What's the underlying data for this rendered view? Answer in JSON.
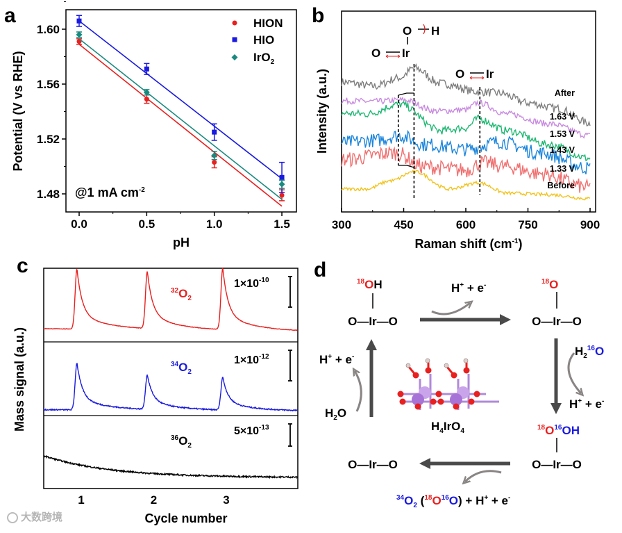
{
  "chart_data": [
    {
      "panel": "a",
      "type": "scatter",
      "xlabel": "pH",
      "ylabel": "Potential (V vs RHE)",
      "xlim": [
        -0.1,
        1.6
      ],
      "ylim": [
        1.467,
        1.614
      ],
      "xticks": [
        "0.0",
        "0.5",
        "1.0",
        "1.5"
      ],
      "yticks": [
        "1.48",
        "1.52",
        "1.56",
        "1.60"
      ],
      "xtick_values": [
        0,
        0.5,
        1.0,
        1.5
      ],
      "ytick_values": [
        1.48,
        1.52,
        1.56,
        1.6
      ],
      "annotation": {
        "main": "@1 mA cm",
        "sup": "-2"
      },
      "legend_position": "top-right",
      "x": [
        0,
        0.5,
        1.0,
        1.5
      ],
      "series": [
        {
          "name": "HION",
          "color": "#e8201f",
          "marker": "circle",
          "values": [
            1.591,
            1.549,
            1.503,
            1.479
          ],
          "errors": [
            0.002,
            0.003,
            0.004,
            0.004
          ],
          "fit": [
            1.589,
            1.471
          ]
        },
        {
          "name": "HIO",
          "color": "#1a1ae0",
          "marker": "square",
          "values": [
            1.606,
            1.571,
            1.525,
            1.492
          ],
          "errors": [
            0.004,
            0.004,
            0.006,
            0.011
          ],
          "fit": [
            1.606,
            1.491
          ]
        },
        {
          "name": "IrO",
          "sub": "2",
          "color": "#1a8a80",
          "marker": "diamond",
          "values": [
            1.596,
            1.554,
            1.508,
            1.487
          ],
          "errors": [
            0.002,
            0.002,
            0.003,
            0.003
          ],
          "fit": [
            1.593,
            1.476
          ]
        }
      ]
    },
    {
      "panel": "b",
      "type": "line",
      "xlabel": "Raman shift (cm",
      "xlabel_sup": "-1",
      "xlabel_end": ")",
      "ylabel": "Intensity (a.u.)",
      "xlim": [
        300,
        900
      ],
      "xticks": [
        "300",
        "450",
        "600",
        "750",
        "900"
      ],
      "xtick_values": [
        300,
        450,
        600,
        750,
        900
      ],
      "annotations": {
        "oh_o": "O",
        "oh_h": "H",
        "irO_o": "O",
        "irO_ir": "Ir",
        "irO2_o": "O",
        "irO2_ir": "Ir"
      },
      "reference_lines": [
        475,
        437,
        634
      ],
      "series": [
        {
          "name": "After",
          "color": "#7f7f7f",
          "noise": 0.3,
          "points": [
            [
              300,
              9.1
            ],
            [
              380,
              8.8
            ],
            [
              440,
              9.4
            ],
            [
              475,
              10.1
            ],
            [
              540,
              9.0
            ],
            [
              630,
              8.4
            ],
            [
              680,
              8.3
            ],
            [
              750,
              7.6
            ],
            [
              820,
              7.2
            ],
            [
              900,
              6.15
            ]
          ]
        },
        {
          "name": "1.63 V",
          "color": "#c88ae0",
          "noise": 0.22,
          "points": [
            [
              300,
              7.75
            ],
            [
              380,
              7.7
            ],
            [
              450,
              7.8
            ],
            [
              530,
              7.0
            ],
            [
              600,
              7.1
            ],
            [
              630,
              7.6
            ],
            [
              700,
              6.8
            ],
            [
              800,
              6.1
            ],
            [
              900,
              5.25
            ]
          ]
        },
        {
          "name": "1.53 V",
          "color": "#1fb873",
          "noise": 0.28,
          "points": [
            [
              300,
              6.85
            ],
            [
              360,
              6.8
            ],
            [
              440,
              7.5
            ],
            [
              540,
              5.6
            ],
            [
              600,
              5.8
            ],
            [
              630,
              6.45
            ],
            [
              700,
              5.6
            ],
            [
              800,
              4.6
            ],
            [
              900,
              3.6
            ]
          ]
        },
        {
          "name": "1.43 V",
          "color": "#1c86dc",
          "noise": 0.5,
          "points": [
            [
              300,
              4.75
            ],
            [
              380,
              4.9
            ],
            [
              440,
              5.25
            ],
            [
              500,
              4.6
            ],
            [
              600,
              4.25
            ],
            [
              680,
              4.8
            ],
            [
              780,
              4.0
            ],
            [
              900,
              2.9
            ]
          ]
        },
        {
          "name": "1.33 V",
          "color": "#f07070",
          "noise": 0.55,
          "points": [
            [
              300,
              3.5
            ],
            [
              430,
              4.0
            ],
            [
              500,
              3.0
            ],
            [
              600,
              2.75
            ],
            [
              640,
              3.3
            ],
            [
              700,
              3.0
            ],
            [
              780,
              2.5
            ],
            [
              900,
              1.5
            ]
          ]
        },
        {
          "name": "Before",
          "color": "#f2c21a",
          "noise": 0.12,
          "points": [
            [
              300,
              1.4
            ],
            [
              360,
              1.4
            ],
            [
              420,
              2.0
            ],
            [
              475,
              2.65
            ],
            [
              560,
              1.4
            ],
            [
              630,
              1.85
            ],
            [
              700,
              1.1
            ],
            [
              800,
              1.0
            ],
            [
              900,
              0.7
            ]
          ]
        }
      ]
    },
    {
      "panel": "c",
      "type": "line",
      "xlabel": "Cycle number",
      "ylabel": "Mass signal (a.u.)",
      "xlim": [
        0.51,
        4.01
      ],
      "xticks": [
        "1",
        "2",
        "3"
      ],
      "xtick_values": [
        1,
        2,
        3
      ],
      "series": [
        {
          "name_sup": "32",
          "name": "O",
          "name_sub": "2",
          "color": "#e8201f",
          "scale_bar": {
            "main": "1×10",
            "sup": "-10"
          },
          "baseline": [
            0.18,
            0.14
          ],
          "peaks": [
            [
              0.97,
              0.82
            ],
            [
              1.94,
              0.78
            ],
            [
              2.98,
              0.84
            ]
          ],
          "decay": 0,
          "noise": 0.003
        },
        {
          "name_sup": "34",
          "name": "O",
          "name_sub": "2",
          "color": "#1a1ae0",
          "scale_bar": {
            "main": "1×10",
            "sup": "-12"
          },
          "baseline": [
            0.08,
            0.06
          ],
          "peaks": [
            [
              0.97,
              0.64
            ],
            [
              1.94,
              0.47
            ],
            [
              2.98,
              0.45
            ]
          ],
          "decay": 0,
          "noise": 0.008
        },
        {
          "name_sup": "36",
          "name": "O",
          "name_sub": "2",
          "color": "#000000",
          "scale_bar": {
            "main": "5×10",
            "sup": "-13"
          },
          "baseline": [
            0.15,
            0.15
          ],
          "peaks": [],
          "decay": 0.3,
          "noise": 0.01
        }
      ]
    }
  ],
  "panels": {
    "a": "a",
    "b": "b",
    "c": "c",
    "d": "d"
  },
  "diagram": {
    "o_ir_o": "O—Ir—O",
    "h_plus": "H",
    "plus_e": " + e",
    "sup_plus": "+",
    "sup_minus": "-",
    "iso18": "18",
    "iso16": "16",
    "iso34": "34",
    "O": "O",
    "H": "H",
    "OH": "OH",
    "h2o_h": "H",
    "h2o_sub": "2",
    "h2o_o": "O",
    "catalyst": {
      "h": "H",
      "sub1": "4",
      "ir_o": "IrO",
      "sub2": "4"
    },
    "product_o2": "O",
    "product_sub": "2",
    "product_open": " (",
    "product_close": ") + H",
    "colors": {
      "red": "#e8201f",
      "blue": "#1a1ae0",
      "arrow": "#4a4a4a",
      "curved": "#8a8585"
    }
  },
  "watermark": "大数跨境"
}
